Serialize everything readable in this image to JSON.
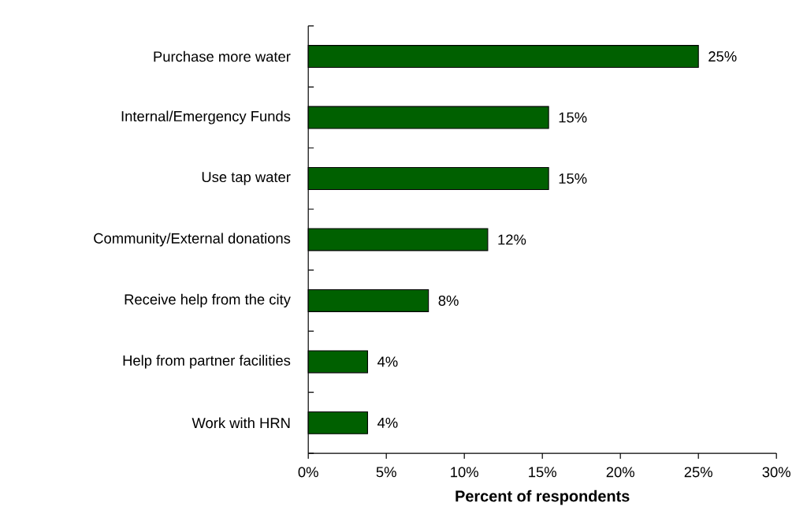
{
  "chart_data": {
    "type": "bar",
    "orientation": "horizontal",
    "categories": [
      "Purchase more water",
      "Internal/Emergency Funds",
      "Use tap water",
      "Community/External donations",
      "Receive help from the city",
      "Help from partner facilities",
      "Work with HRN"
    ],
    "values": [
      25,
      15.4,
      15.4,
      11.5,
      7.7,
      3.8,
      3.8
    ],
    "value_labels": [
      "25%",
      "15%",
      "15%",
      "12%",
      "8%",
      "4%",
      "4%"
    ],
    "color": "#006000",
    "xlabel": "Percent of respondents",
    "xlim": [
      0,
      30
    ],
    "xticks": [
      {
        "value": 0,
        "label": "0%"
      },
      {
        "value": 5,
        "label": "5%"
      },
      {
        "value": 10,
        "label": "10%"
      },
      {
        "value": 15,
        "label": "15%"
      },
      {
        "value": 20,
        "label": "20%"
      },
      {
        "value": 25,
        "label": "25%"
      },
      {
        "value": 30,
        "label": "30%"
      }
    ]
  }
}
